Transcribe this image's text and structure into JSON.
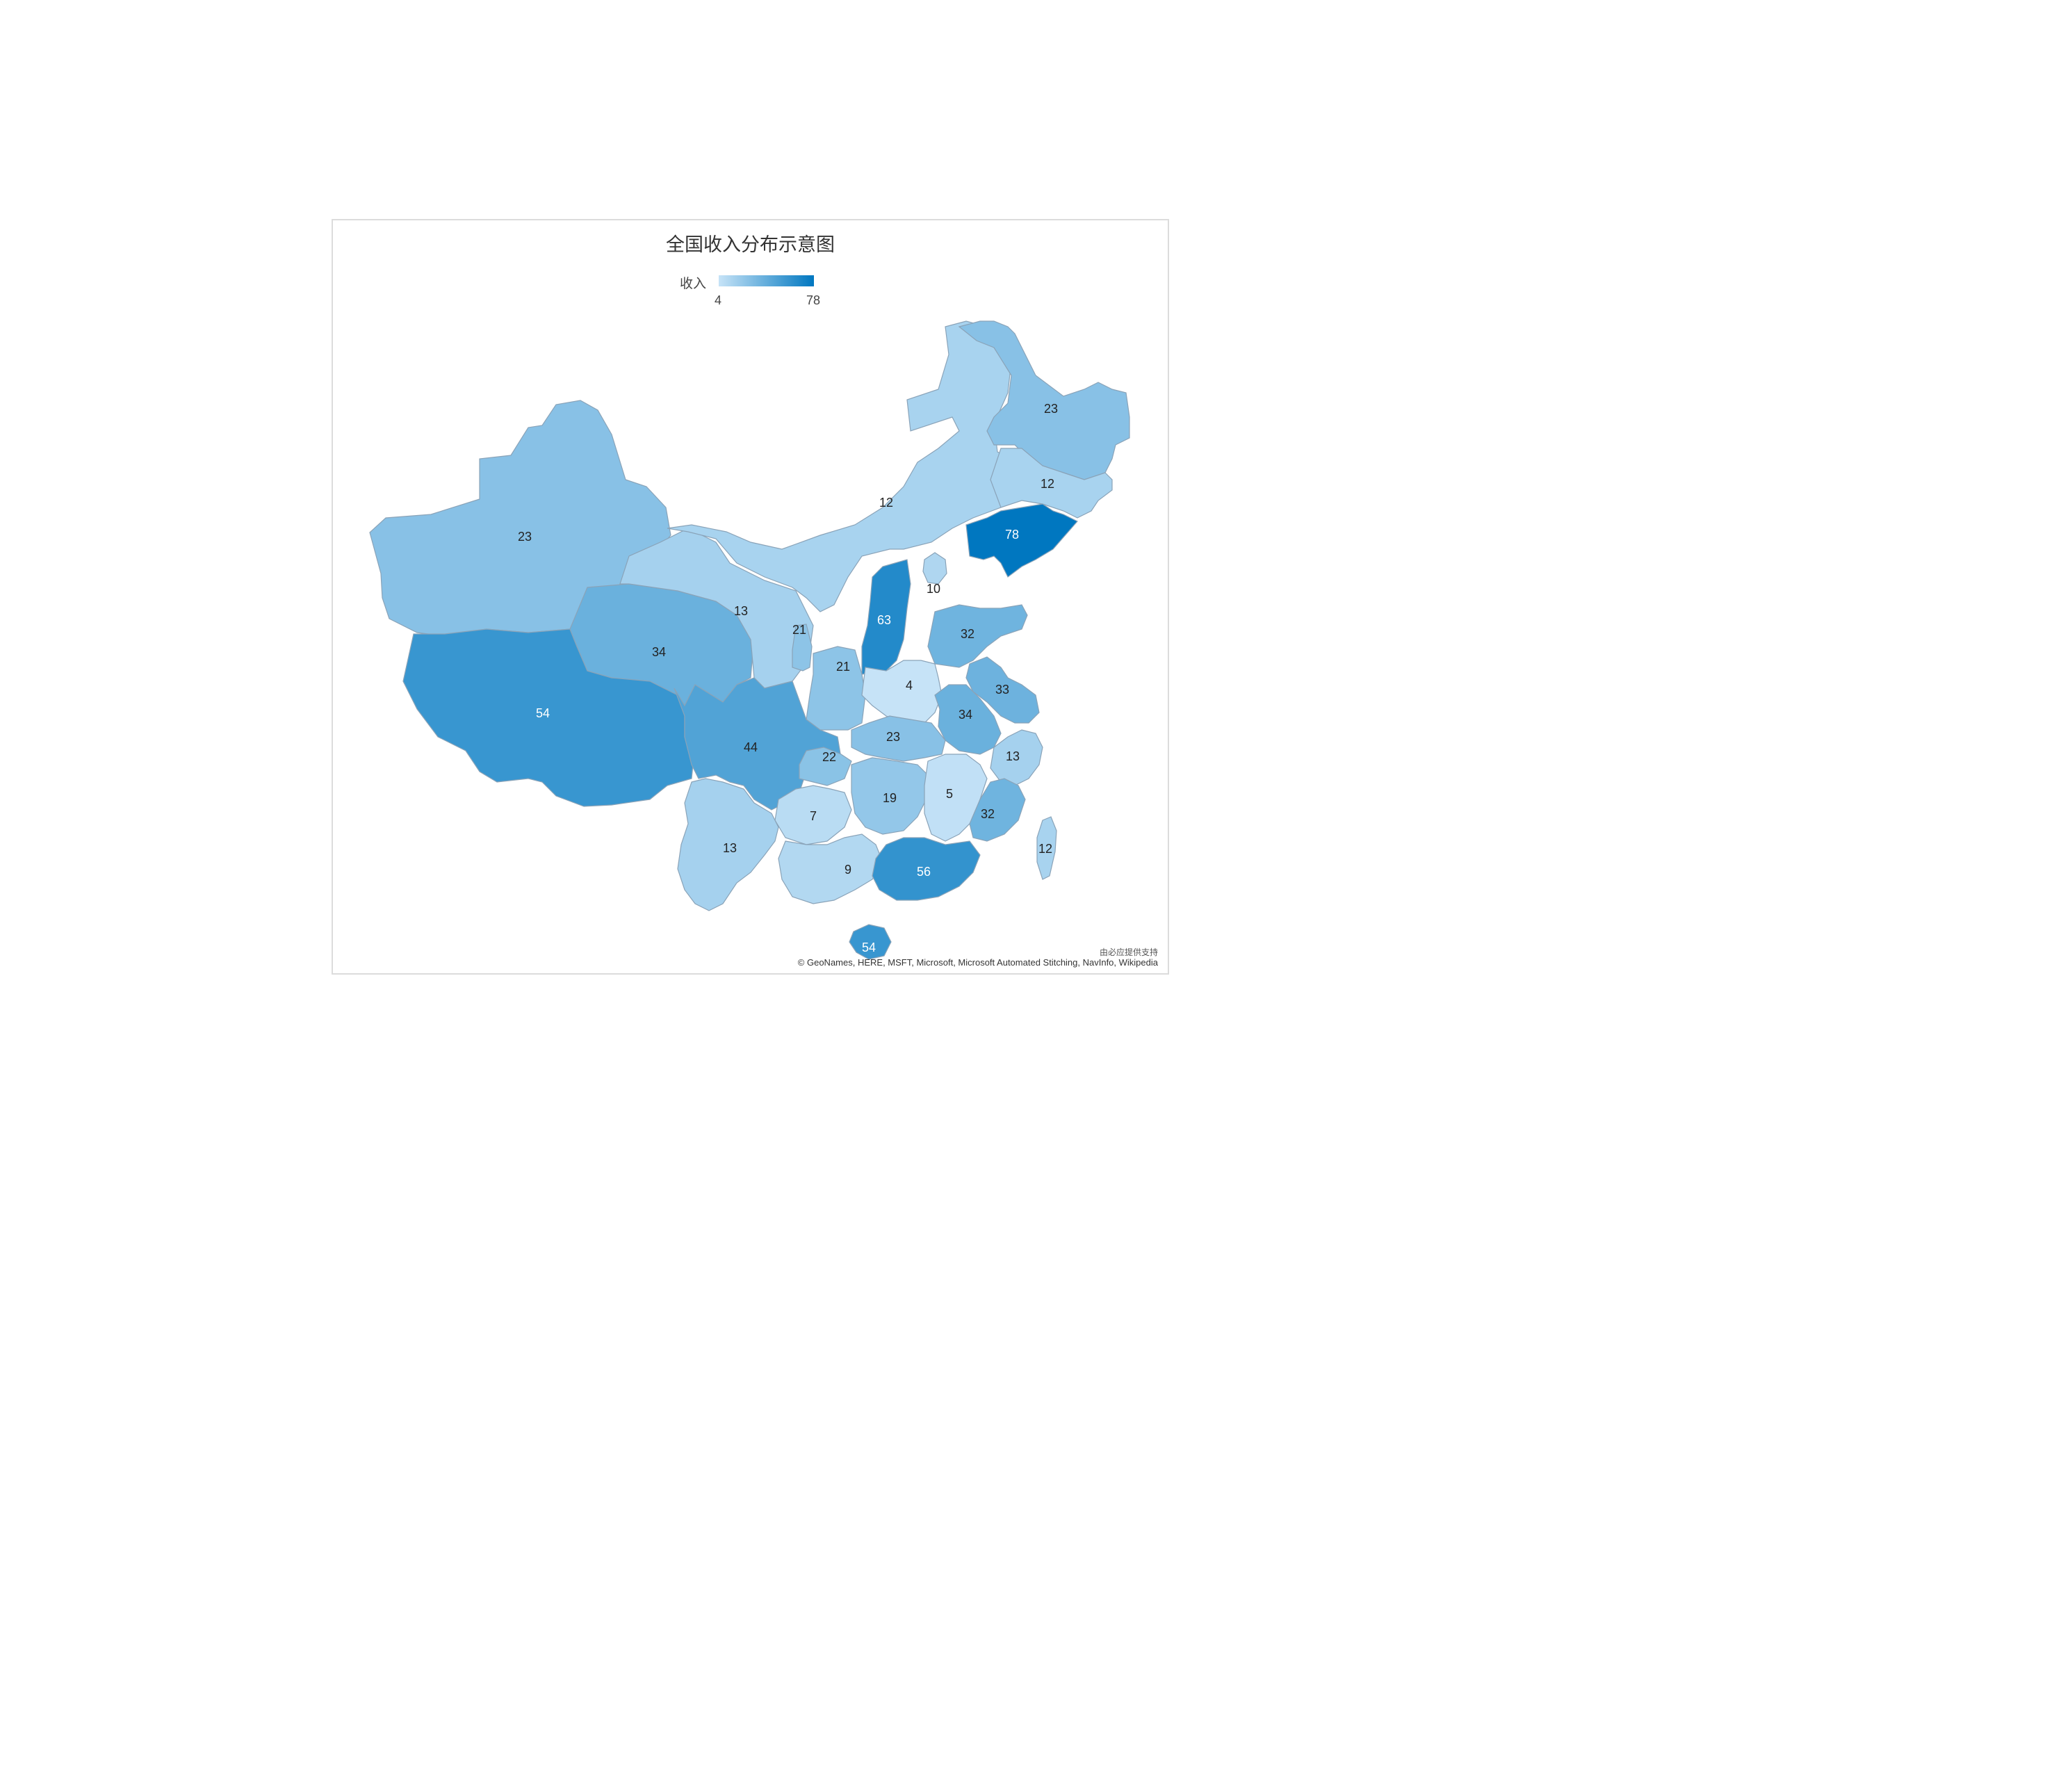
{
  "title": "全国收入分布示意图",
  "legend": {
    "label": "收入",
    "min": "4",
    "max": "78",
    "min_value": 4,
    "max_value": 78,
    "color_low": "#c6e3f7",
    "color_high": "#0077c0"
  },
  "credits": {
    "provider": "由必应提供支持",
    "attribution": "© GeoNames, HERE, MSFT, Microsoft, Microsoft Automated Stitching, NavInfo, Wikipedia"
  },
  "chart_data": {
    "type": "choropleth",
    "title": "全国收入分布示意图",
    "value_label": "收入",
    "range": [
      4,
      78
    ],
    "regions": [
      {
        "name": "新疆",
        "value": 23
      },
      {
        "name": "西藏",
        "value": 54
      },
      {
        "name": "青海",
        "value": 34
      },
      {
        "name": "甘肃",
        "value": 13
      },
      {
        "name": "内蒙古",
        "value": 12
      },
      {
        "name": "黑龙江",
        "value": 23
      },
      {
        "name": "吉林",
        "value": 12
      },
      {
        "name": "辽宁",
        "value": 78
      },
      {
        "name": "宁夏",
        "value": 21
      },
      {
        "name": "陕西",
        "value": 21
      },
      {
        "name": "山西",
        "value": 63
      },
      {
        "name": "北京",
        "value": 10
      },
      {
        "name": "山东",
        "value": 32
      },
      {
        "name": "河南",
        "value": 4
      },
      {
        "name": "江苏",
        "value": 33
      },
      {
        "name": "安徽",
        "value": 34
      },
      {
        "name": "湖北",
        "value": 23
      },
      {
        "name": "四川",
        "value": 44
      },
      {
        "name": "重庆",
        "value": 22
      },
      {
        "name": "浙江",
        "value": 13
      },
      {
        "name": "湖南",
        "value": 19
      },
      {
        "name": "江西",
        "value": 5
      },
      {
        "name": "福建",
        "value": 32
      },
      {
        "name": "贵州",
        "value": 7
      },
      {
        "name": "云南",
        "value": 13
      },
      {
        "name": "广西",
        "value": 9
      },
      {
        "name": "广东",
        "value": 56
      },
      {
        "name": "台湾",
        "value": 12
      },
      {
        "name": "海南",
        "value": 54
      }
    ]
  }
}
